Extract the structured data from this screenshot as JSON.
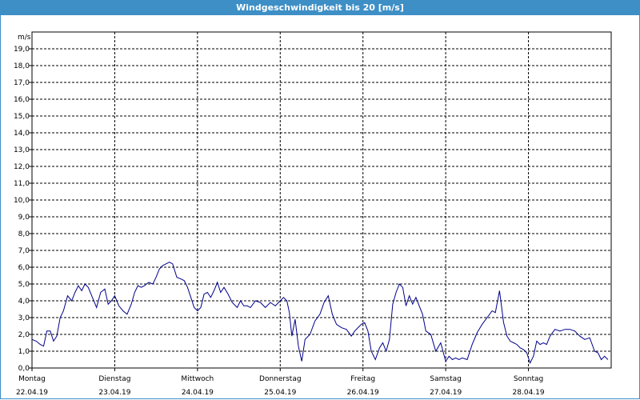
{
  "window": {
    "title": "Windgeschwindigkeit bis 20 [m/s]"
  },
  "colors": {
    "titlebar": "#3d8fc6",
    "line": "#00008b",
    "grid": "#000000"
  },
  "chart_data": {
    "type": "line",
    "title": "Windgeschwindigkeit bis 20 [m/s]",
    "ylabel": "m/s",
    "ylim": [
      0,
      20
    ],
    "yticks": [
      "0,0",
      "1,0",
      "2,0",
      "3,0",
      "4,0",
      "5,0",
      "6,0",
      "7,0",
      "8,0",
      "9,0",
      "10,0",
      "11,0",
      "12,0",
      "13,0",
      "14,0",
      "15,0",
      "16,0",
      "17,0",
      "18,0",
      "19,0"
    ],
    "xlim": [
      0,
      7
    ],
    "xticks": [
      {
        "day": "Montag",
        "date": "22.04.19"
      },
      {
        "day": "Dienstag",
        "date": "23.04.19"
      },
      {
        "day": "Mittwoch",
        "date": "24.04.19"
      },
      {
        "day": "Donnerstag",
        "date": "25.04.19"
      },
      {
        "day": "Freitag",
        "date": "26.04.19"
      },
      {
        "day": "Samstag",
        "date": "27.04.19"
      },
      {
        "day": "Sonntag",
        "date": "28.04.19"
      }
    ],
    "grid": true,
    "series": [
      {
        "x": [
          0,
          0.05,
          0.1,
          0.14,
          0.18,
          0.22,
          0.26,
          0.3,
          0.34,
          0.38,
          0.43,
          0.48,
          0.52,
          0.56,
          0.6,
          0.64,
          0.68,
          0.73,
          0.78,
          0.83,
          0.88,
          0.92,
          0.96,
          1.0,
          1.05,
          1.1,
          1.15,
          1.2,
          1.24,
          1.28,
          1.32,
          1.36,
          1.41,
          1.46,
          1.5,
          1.54,
          1.58,
          1.62,
          1.66,
          1.7,
          1.75,
          1.8,
          1.84,
          1.88,
          1.92,
          1.96,
          2.0,
          2.04,
          2.08,
          2.12,
          2.16,
          2.2,
          2.24,
          2.28,
          2.32,
          2.37,
          2.42,
          2.48,
          2.52,
          2.56,
          2.6,
          2.64,
          2.7,
          2.76,
          2.82,
          2.88,
          2.94,
          3.0,
          3.04,
          3.08,
          3.11,
          3.14,
          3.18,
          3.22,
          3.26,
          3.3,
          3.36,
          3.42,
          3.48,
          3.53,
          3.58,
          3.63,
          3.68,
          3.74,
          3.8,
          3.86,
          3.9,
          3.94,
          3.98,
          4.02,
          4.06,
          4.1,
          4.15,
          4.2,
          4.24,
          4.28,
          4.32,
          4.36,
          4.4,
          4.44,
          4.48,
          4.52,
          4.56,
          4.6,
          4.64,
          4.68,
          4.72,
          4.76,
          4.82,
          4.88,
          4.94,
          5.0,
          5.04,
          5.08,
          5.12,
          5.16,
          5.2,
          5.26,
          5.32,
          5.38,
          5.44,
          5.5,
          5.56,
          5.6,
          5.65,
          5.7,
          5.74,
          5.78,
          5.82,
          5.86,
          5.9,
          5.94,
          5.98,
          6.02,
          6.06,
          6.1,
          6.14,
          6.18,
          6.22,
          6.26,
          6.32,
          6.38,
          6.44,
          6.5,
          6.56,
          6.62,
          6.68,
          6.74,
          6.8,
          6.84,
          6.88,
          6.92,
          6.96
        ],
        "y": [
          1.7,
          1.6,
          1.4,
          1.3,
          2.2,
          2.2,
          1.6,
          1.9,
          3.0,
          3.4,
          4.3,
          4.0,
          4.5,
          4.9,
          4.6,
          5.0,
          4.8,
          4.2,
          3.6,
          4.5,
          4.7,
          3.8,
          4.0,
          4.3,
          3.7,
          3.4,
          3.2,
          3.8,
          4.5,
          4.9,
          4.8,
          4.9,
          5.1,
          5.0,
          5.4,
          5.9,
          6.1,
          6.2,
          6.3,
          6.2,
          5.4,
          5.3,
          5.2,
          4.8,
          4.2,
          3.6,
          3.4,
          3.6,
          4.4,
          4.5,
          4.2,
          4.6,
          5.1,
          4.5,
          4.8,
          4.4,
          3.9,
          3.6,
          4.0,
          3.7,
          3.7,
          3.6,
          4.0,
          3.9,
          3.6,
          3.9,
          3.7,
          4.0,
          4.2,
          4.0,
          3.3,
          1.9,
          2.9,
          1.3,
          0.4,
          1.7,
          2.0,
          2.8,
          3.2,
          3.9,
          4.3,
          3.2,
          2.6,
          2.4,
          2.3,
          1.9,
          2.2,
          2.4,
          2.6,
          2.7,
          2.2,
          1.0,
          0.5,
          1.2,
          1.5,
          1.0,
          1.7,
          3.8,
          4.5,
          5.0,
          4.8,
          3.7,
          4.3,
          3.8,
          4.2,
          3.7,
          3.2,
          2.2,
          2.0,
          1.0,
          1.5,
          0.4,
          0.7,
          0.5,
          0.6,
          0.5,
          0.6,
          0.5,
          1.4,
          2.1,
          2.6,
          3.0,
          3.4,
          3.3,
          4.6,
          2.7,
          1.9,
          1.6,
          1.5,
          1.4,
          1.2,
          1.1,
          0.9,
          0.3,
          0.7,
          1.6,
          1.4,
          1.5,
          1.4,
          1.9,
          2.3,
          2.2,
          2.3,
          2.3,
          2.2,
          1.9,
          1.7,
          1.8,
          1.0,
          0.9,
          0.5,
          0.7,
          0.5
        ]
      }
    ]
  }
}
